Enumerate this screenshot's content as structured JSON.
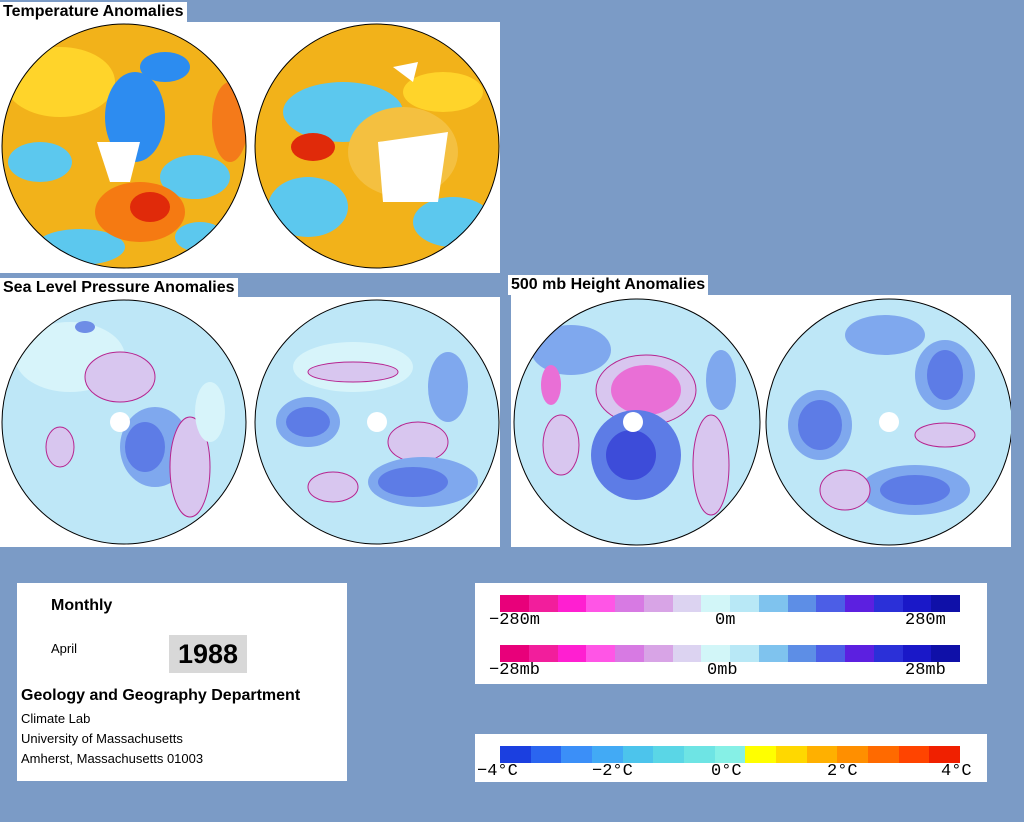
{
  "titles": {
    "temperature": "Temperature Anomalies",
    "slp": "Sea Level Pressure Anomalies",
    "height500": "500 mb Height Anomalies"
  },
  "info": {
    "period": "Monthly",
    "month": "April",
    "year": "1988",
    "department": "Geology and Geography Department",
    "lab": "Climate Lab",
    "university": "University of Massachusetts",
    "address": "Amherst, Massachusetts 01003"
  },
  "legends": {
    "height": {
      "min": "−280m",
      "mid": "0m",
      "max": "280m"
    },
    "pressure": {
      "min": "−28mb",
      "mid": "0mb",
      "max": "28mb"
    },
    "temperature": {
      "t1": "−4°C",
      "t2": "−2°C",
      "t3": "0°C",
      "t4": "2°C",
      "t5": "4°C"
    }
  },
  "colors": {
    "background": "#7b9bc6",
    "anomaly_scale": [
      "#e8007a",
      "#f21e9c",
      "#ff1fd1",
      "#ff55e6",
      "#d77ae3",
      "#d8a4e6",
      "#dcd3f1",
      "#d2f6f8",
      "#b8e8f6",
      "#7fc3ee",
      "#5d8ee6",
      "#4c5ee6",
      "#5c20e0",
      "#2b30d8",
      "#1a18c8",
      "#0f10a8"
    ],
    "temperature_scale": [
      "#1b3fe0",
      "#2a65f0",
      "#3b8ff8",
      "#42aaf5",
      "#4cc4ec",
      "#5ad6e6",
      "#6ee4e4",
      "#86f0e6",
      "#ffff00",
      "#ffd800",
      "#ffb000",
      "#ff8f00",
      "#ff6a00",
      "#ff4400",
      "#f02000"
    ]
  }
}
